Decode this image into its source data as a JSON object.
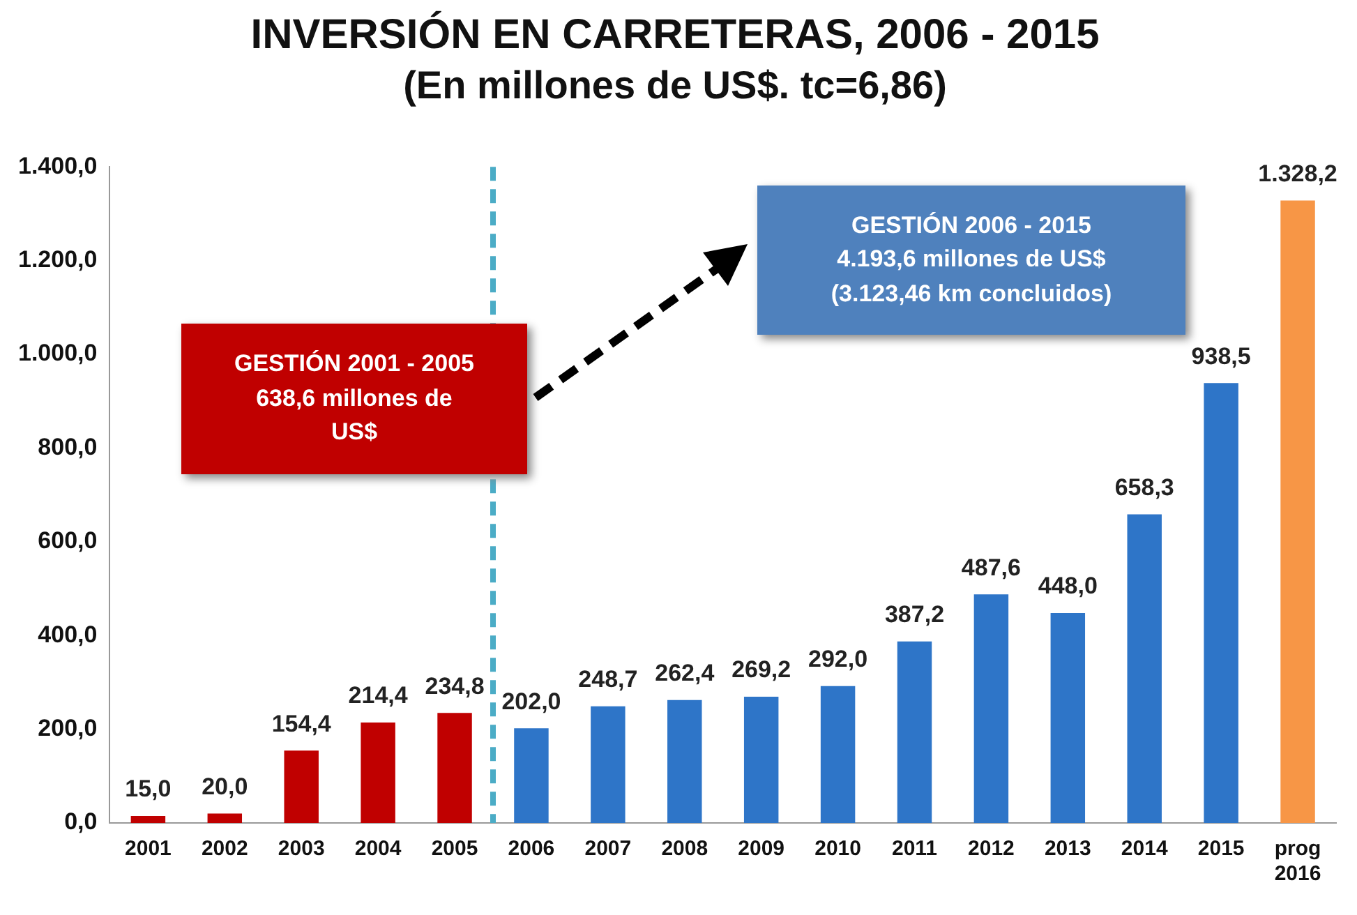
{
  "chart_data": {
    "type": "bar",
    "title": "INVERSIÓN EN CARRETERAS, 2006 - 2015",
    "subtitle": "(En millones de US$. tc=6,86)",
    "categories": [
      "2001",
      "2002",
      "2003",
      "2004",
      "2005",
      "2006",
      "2007",
      "2008",
      "2009",
      "2010",
      "2011",
      "2012",
      "2013",
      "2014",
      "2015",
      "prog 2016"
    ],
    "values": [
      15.0,
      20.0,
      154.4,
      214.4,
      234.8,
      202.0,
      248.7,
      262.4,
      269.2,
      292.0,
      387.2,
      487.6,
      448.0,
      658.3,
      938.5,
      1328.2
    ],
    "colors": [
      "#c00000",
      "#c00000",
      "#c00000",
      "#c00000",
      "#c00000",
      "#2e75c8",
      "#2e75c8",
      "#2e75c8",
      "#2e75c8",
      "#2e75c8",
      "#2e75c8",
      "#2e75c8",
      "#2e75c8",
      "#2e75c8",
      "#2e75c8",
      "#f79646"
    ],
    "value_labels": [
      "15,0",
      "20,0",
      "154,4",
      "214,4",
      "234,8",
      "202,0",
      "248,7",
      "262,4",
      "269,2",
      "292,0",
      "387,2",
      "487,6",
      "448,0",
      "658,3",
      "938,5",
      "1.328,2"
    ],
    "ylim": [
      0,
      1400
    ],
    "yticks": [
      {
        "value": 0,
        "label": "0,0"
      },
      {
        "value": 200,
        "label": "200,0"
      },
      {
        "value": 400,
        "label": "400,0"
      },
      {
        "value": 600,
        "label": "600,0"
      },
      {
        "value": 800,
        "label": "800,0"
      },
      {
        "value": 1000,
        "label": "1.000,0"
      },
      {
        "value": 1200,
        "label": "1.200,0"
      },
      {
        "value": 1400,
        "label": "1.400,0"
      }
    ],
    "annotations": [
      "GESTIÓN 2001 - 2005\n638,6 millones de\nUS$",
      "GESTIÓN 2006 - 2015\n4.193,6 millones de US$\n(3.123,46 km concluidos)"
    ],
    "ref_lines": [
      {
        "axis": "x",
        "value": "2005",
        "color": "#4bacc6",
        "line_style": "dashed"
      }
    ],
    "grid": false,
    "legend": false
  }
}
